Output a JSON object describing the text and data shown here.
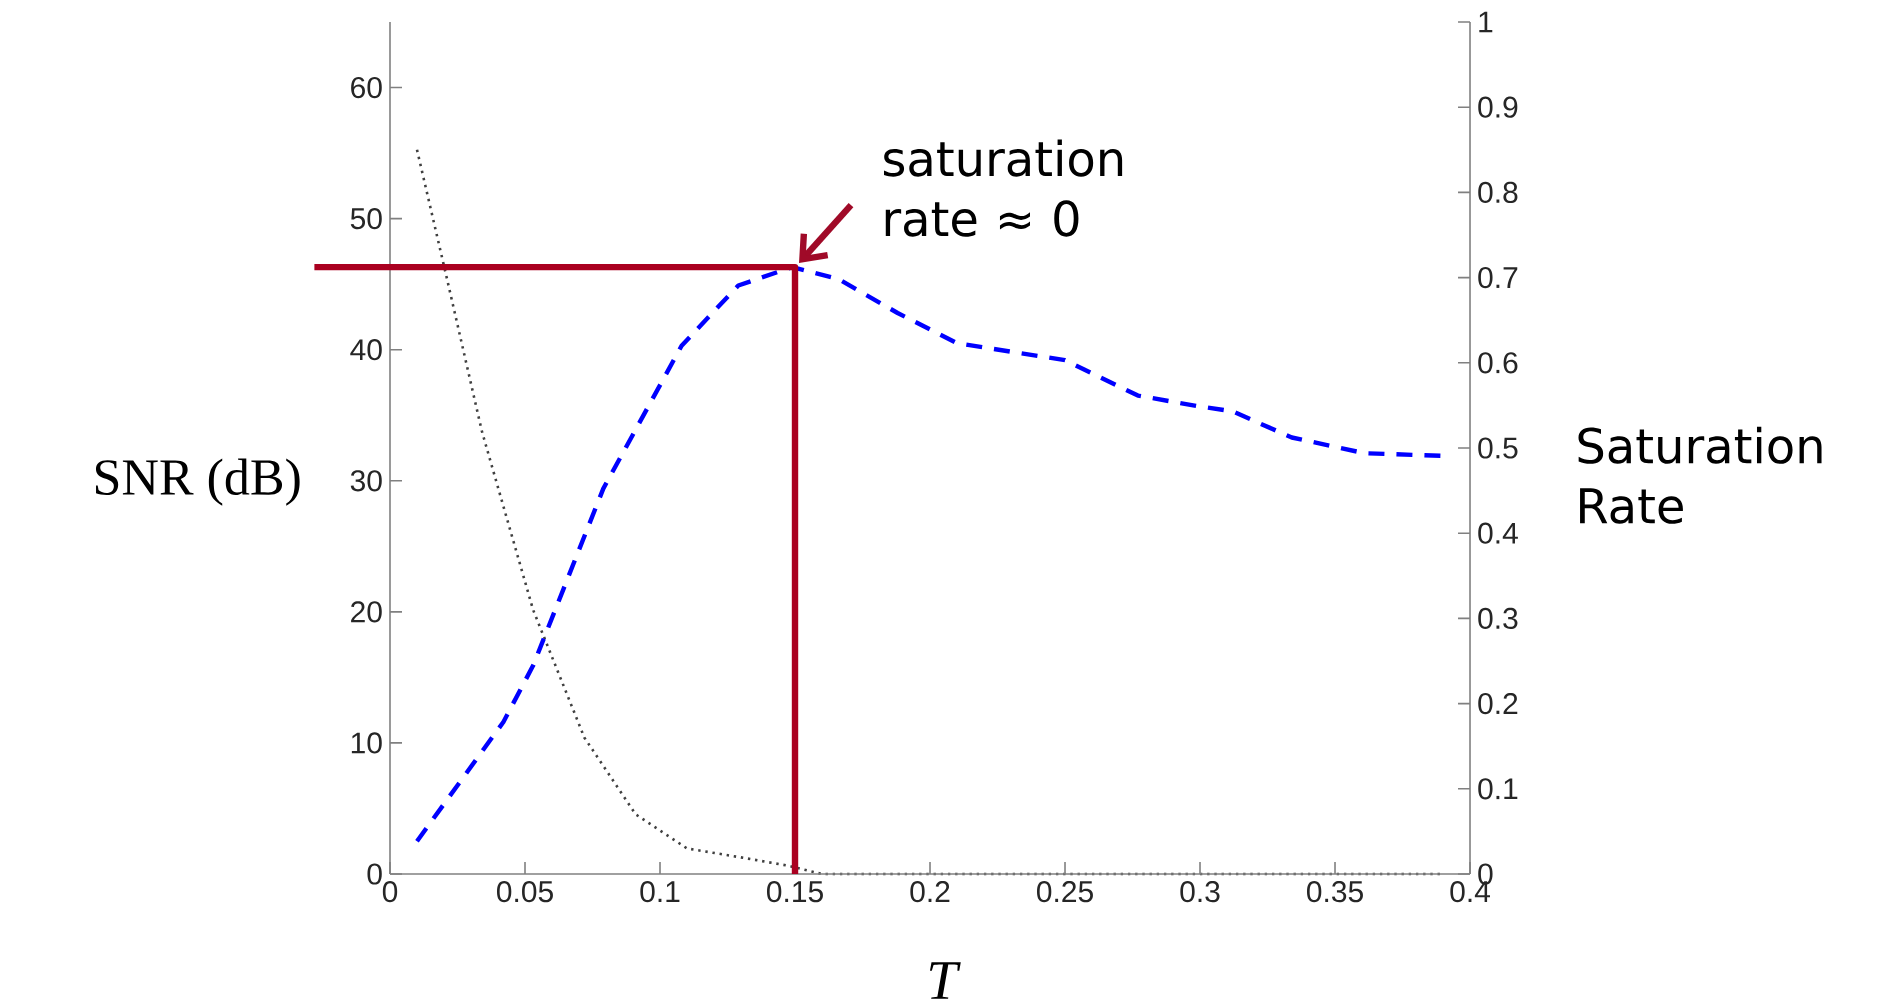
{
  "chart_data": {
    "type": "line",
    "xlabel": "T",
    "ylabel": "SNR (dB)",
    "y2label": "Saturation Rate",
    "xlim": [
      0,
      0.4
    ],
    "xticks": [
      0,
      0.05,
      0.1,
      0.15,
      0.2,
      0.25,
      0.3,
      0.35,
      0.4
    ],
    "ylim": [
      0,
      65
    ],
    "yticks": [
      0,
      10,
      20,
      30,
      40,
      50,
      60
    ],
    "y2lim": [
      0,
      1
    ],
    "y2ticks": [
      0,
      0.1,
      0.2,
      0.3,
      0.4,
      0.5,
      0.6,
      0.7,
      0.8,
      0.9,
      1
    ],
    "series": [
      {
        "color": "#0000ff",
        "line_style": "dashed",
        "x": [
          0.01,
          0.042,
          0.053,
          0.079,
          0.108,
          0.129,
          0.149,
          0.166,
          0.188,
          0.21,
          0.25,
          0.277,
          0.299,
          0.312,
          0.334,
          0.361,
          0.39
        ],
        "values": [
          2.5,
          11.6,
          15.9,
          29.4,
          40.3,
          44.9,
          46.3,
          45.4,
          42.8,
          40.5,
          39.2,
          36.5,
          35.7,
          35.3,
          33.3,
          32.1,
          31.9
        ]
      },
      {
        "color": "#404040",
        "line_style": "dotted",
        "axis": "y2",
        "x": [
          0.01,
          0.021,
          0.034,
          0.053,
          0.072,
          0.091,
          0.11,
          0.129,
          0.147,
          0.16,
          0.2,
          0.25,
          0.3,
          0.35,
          0.39
        ],
        "values": [
          0.85,
          0.7,
          0.52,
          0.31,
          0.16,
          0.07,
          0.03,
          0.02,
          0.01,
          0,
          0,
          0,
          0,
          0,
          0
        ]
      },
      {
        "color": "#aa0020",
        "line_style": "solid",
        "x": [
          0,
          0.15,
          0.15
        ],
        "values": [
          46.3,
          46.3,
          0
        ]
      }
    ],
    "annotations": [
      {
        "text": "saturation rate ≈ 0",
        "x": 0.15,
        "y": 46.3
      }
    ]
  }
}
